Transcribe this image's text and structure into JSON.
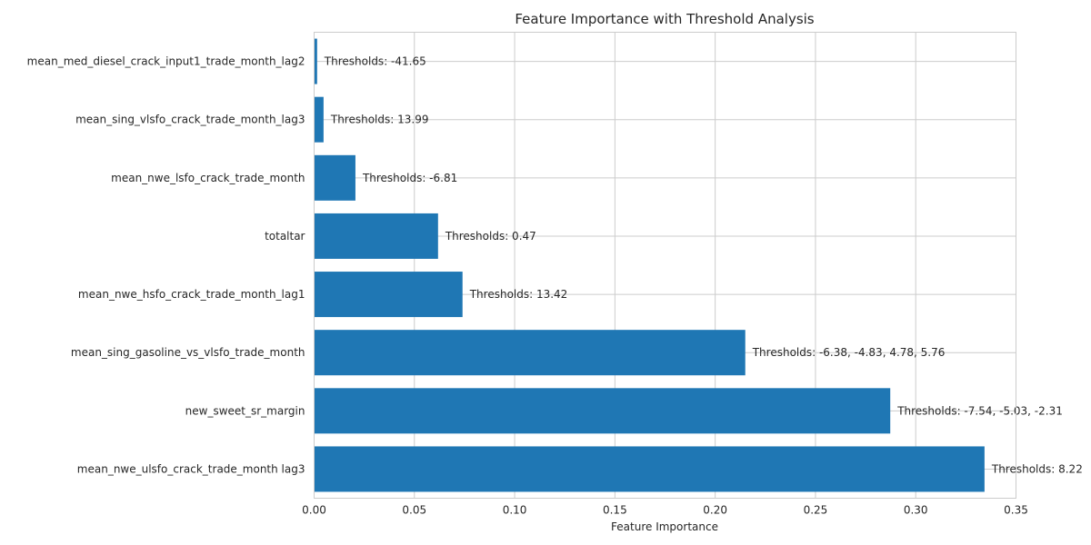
{
  "chart_data": {
    "type": "bar",
    "orientation": "horizontal",
    "title": "Feature Importance with Threshold Analysis",
    "xlabel": "Feature Importance",
    "ylabel": "",
    "xlim": [
      0,
      0.35
    ],
    "xticks": [
      "0.00",
      "0.05",
      "0.10",
      "0.15",
      "0.20",
      "0.25",
      "0.30",
      "0.35"
    ],
    "grid": true,
    "bar_color": "#1f77b4",
    "categories": [
      "mean_med_diesel_crack_input1_trade_month_lag2",
      "mean_sing_vlsfo_crack_trade_month_lag3",
      "mean_nwe_lsfo_crack_trade_month",
      "totaltar",
      "mean_nwe_hsfo_crack_trade_month_lag1",
      "mean_sing_gasoline_vs_vlsfo_trade_month",
      "new_sweet_sr_margin",
      "mean_nwe_ulsfo_crack_trade_month lag3"
    ],
    "values": [
      0.0015,
      0.0047,
      0.0206,
      0.0618,
      0.074,
      0.215,
      0.2873,
      0.3343
    ],
    "annotations": [
      "Thresholds: -41.65",
      "Thresholds: 13.99",
      "Thresholds: -6.81",
      "Thresholds: 0.47",
      "Thresholds: 13.42",
      "Thresholds: -6.38, -4.83, 4.78, 5.76",
      "Thresholds: -7.54, -5.03, -2.31",
      "Thresholds: 8.22"
    ]
  }
}
